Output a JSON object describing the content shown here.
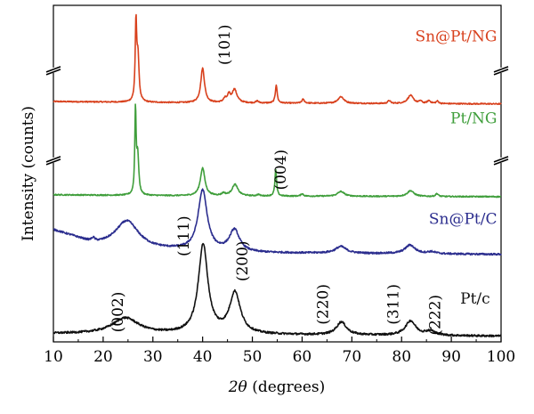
{
  "chart_data": {
    "type": "line",
    "xlabel": "2θ (degrees)",
    "ylabel": "Intensity (counts)",
    "xlim": [
      10,
      100
    ],
    "xticks": [
      10,
      20,
      30,
      40,
      50,
      60,
      70,
      80,
      90,
      100
    ],
    "grid": false,
    "y_axis_break_symbols": true,
    "series": [
      {
        "name": "Sn@Pt/NG",
        "color": "#d8401c",
        "baseline": 4.95,
        "noise": 0.012,
        "background": [
          [
            10,
            0.05
          ],
          [
            40,
            0.02
          ],
          [
            100,
            0.0
          ]
        ],
        "peaks": [
          [
            26.6,
            1.6,
            0.18
          ],
          [
            27.0,
            0.9,
            0.25
          ],
          [
            40.0,
            0.72,
            0.45
          ],
          [
            44.5,
            0.08,
            0.4
          ],
          [
            45.3,
            0.15,
            0.3
          ],
          [
            46.4,
            0.28,
            0.6
          ],
          [
            51.0,
            0.04,
            0.3
          ],
          [
            54.8,
            0.38,
            0.22
          ],
          [
            60.2,
            0.08,
            0.3
          ],
          [
            67.8,
            0.14,
            0.7
          ],
          [
            77.5,
            0.06,
            0.3
          ],
          [
            81.8,
            0.17,
            0.7
          ],
          [
            83.8,
            0.05,
            0.3
          ],
          [
            85.5,
            0.06,
            0.4
          ],
          [
            87.2,
            0.05,
            0.3
          ]
        ]
      },
      {
        "name": "Pt/NG",
        "color": "#3f9e3b",
        "baseline": 3.02,
        "noise": 0.012,
        "background": [
          [
            10,
            0.04
          ],
          [
            40,
            0.015
          ],
          [
            100,
            0.0
          ]
        ],
        "peaks": [
          [
            26.5,
            1.75,
            0.16
          ],
          [
            26.95,
            0.8,
            0.25
          ],
          [
            40.0,
            0.58,
            0.55
          ],
          [
            44.2,
            0.05,
            0.4
          ],
          [
            46.5,
            0.24,
            0.7
          ],
          [
            51.2,
            0.03,
            0.3
          ],
          [
            54.7,
            0.55,
            0.2
          ],
          [
            60.0,
            0.05,
            0.3
          ],
          [
            67.8,
            0.1,
            0.8
          ],
          [
            81.8,
            0.12,
            0.8
          ],
          [
            87.1,
            0.06,
            0.3
          ]
        ]
      },
      {
        "name": "Sn@Pt/C",
        "color": "#2b2d8e",
        "baseline": 1.82,
        "noise": 0.018,
        "background": [
          [
            10,
            0.5
          ],
          [
            14,
            0.36
          ],
          [
            18,
            0.2
          ],
          [
            30,
            0.1
          ],
          [
            50,
            0.03
          ],
          [
            100,
            0.0
          ]
        ],
        "peaks": [
          [
            18.0,
            0.08,
            0.4
          ],
          [
            24.8,
            0.55,
            2.8
          ],
          [
            40.0,
            1.25,
            1.1
          ],
          [
            46.4,
            0.45,
            1.2
          ],
          [
            67.8,
            0.14,
            1.3
          ],
          [
            81.7,
            0.18,
            1.2
          ],
          [
            86.0,
            0.04,
            1.0
          ]
        ]
      },
      {
        "name": "Pt/c",
        "color": "#111111",
        "baseline": 0.12,
        "noise": 0.02,
        "background": [
          [
            10,
            0.05
          ],
          [
            100,
            0.0
          ]
        ],
        "peaks": [
          [
            24.5,
            0.33,
            3.2
          ],
          [
            40.1,
            1.85,
            1.15
          ],
          [
            46.5,
            0.85,
            1.3
          ],
          [
            67.9,
            0.27,
            1.2
          ],
          [
            81.8,
            0.3,
            1.25
          ],
          [
            85.8,
            0.09,
            1.2
          ]
        ]
      }
    ],
    "peak_labels": [
      {
        "text": "(002)",
        "x": 24.0,
        "y": 0.62
      },
      {
        "text": "(111)",
        "x": 37.2,
        "y": 2.2
      },
      {
        "text": "(200)",
        "x": 49.0,
        "y": 1.68
      },
      {
        "text": "(220)",
        "x": 65.2,
        "y": 0.78
      },
      {
        "text": "(311)",
        "x": 79.3,
        "y": 0.78
      },
      {
        "text": "(222)",
        "x": 87.7,
        "y": 0.56
      },
      {
        "text": "(101)",
        "x": 45.4,
        "y": 6.18
      },
      {
        "text": "(004)",
        "x": 56.7,
        "y": 3.58
      }
    ],
    "series_labels": [
      {
        "series": "Sn@Pt/NG",
        "text": "Sn@Pt/NG",
        "x": 99.2,
        "y": 6.25
      },
      {
        "series": "Pt/NG",
        "text": "Pt/NG",
        "x": 99.2,
        "y": 4.55
      },
      {
        "series": "Sn@Pt/C",
        "text": "Sn@Pt/C",
        "x": 99.2,
        "y": 2.45
      },
      {
        "series": "Pt/c",
        "text": "Pt/c",
        "x": 97.8,
        "y": 0.8
      }
    ]
  }
}
